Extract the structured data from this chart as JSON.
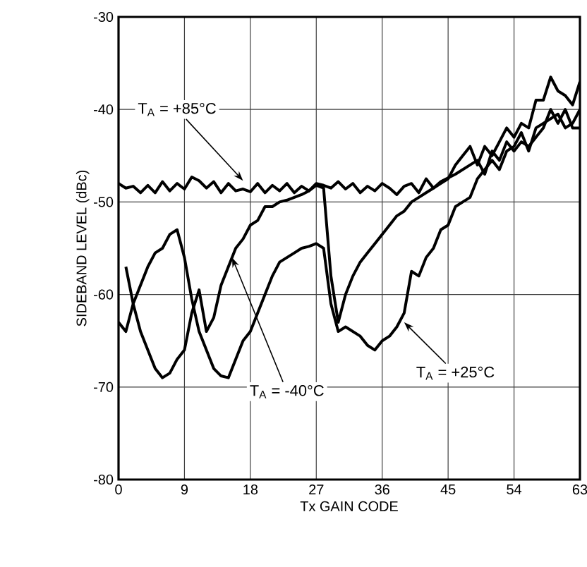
{
  "chart_data": {
    "type": "line",
    "xlabel": "Tx GAIN CODE",
    "ylabel": "SIDEBAND LEVEL (dBc)",
    "xlim": [
      0,
      63
    ],
    "xticks": [
      0,
      9,
      18,
      27,
      36,
      45,
      54,
      63
    ],
    "ylim": [
      -80,
      -30
    ],
    "yticks": [
      -80,
      -70,
      -60,
      -50,
      -40,
      -30
    ],
    "grid": true,
    "line_style": "solid",
    "series": [
      {
        "color": "#000000",
        "x": [
          0,
          1,
          2,
          3,
          4,
          5,
          6,
          7,
          8,
          9,
          10,
          11,
          12,
          13,
          14,
          15,
          16,
          17,
          18,
          19,
          20,
          21,
          22,
          23,
          24,
          25,
          26,
          27,
          28,
          29,
          30,
          31,
          32,
          33,
          34,
          35,
          36,
          37,
          38,
          39,
          40,
          41,
          42,
          43,
          44,
          46,
          48,
          49,
          50,
          51,
          52,
          53,
          54,
          55,
          56,
          57,
          58,
          59,
          60,
          61,
          62,
          63
        ],
        "values": [
          -48,
          -48.5,
          -48.3,
          -49,
          -48.2,
          -49,
          -47.8,
          -48.8,
          -48,
          -48.6,
          -47.3,
          -47.7,
          -48.5,
          -47.8,
          -49,
          -48,
          -48.8,
          -48.6,
          -48.9,
          -48,
          -49,
          -48.2,
          -48.8,
          -48,
          -49,
          -48.3,
          -48.8,
          -48,
          -48.2,
          -48.5,
          -47.8,
          -48.6,
          -48,
          -49,
          -48.3,
          -48.8,
          -48,
          -48.5,
          -49.2,
          -48.3,
          -48,
          -49,
          -47.5,
          -48.5,
          -47.8,
          -47,
          -46,
          -45.5,
          -47,
          -44.5,
          -45.5,
          -43.5,
          -44.5,
          -43.5,
          -44,
          -43,
          -42,
          -40,
          -41.5,
          -40,
          -42,
          -42
        ]
      },
      {
        "color": "#000000",
        "x": [
          1,
          2,
          3,
          4,
          5,
          6,
          7,
          8,
          9,
          10,
          11,
          12,
          13,
          14,
          15,
          16,
          17,
          18,
          19,
          20,
          21,
          22,
          23,
          24,
          25,
          26,
          27,
          28,
          29,
          30,
          31,
          32,
          33,
          34,
          35,
          36,
          37,
          38,
          39,
          40,
          41,
          42,
          43,
          44,
          45,
          46,
          47,
          48,
          49,
          50,
          51,
          52,
          53,
          54,
          55,
          56,
          57,
          58,
          59,
          60,
          61,
          62,
          63
        ],
        "values": [
          -57,
          -61,
          -64,
          -66,
          -68,
          -69,
          -68.5,
          -67,
          -66,
          -62,
          -59.5,
          -64,
          -62.5,
          -59,
          -57,
          -55,
          -54,
          -52.5,
          -52,
          -50.5,
          -50.5,
          -50,
          -49.8,
          -49.5,
          -49.2,
          -48.8,
          -48.2,
          -48.5,
          -58,
          -63,
          -60,
          -58,
          -56.5,
          -55.5,
          -54.5,
          -53.5,
          -52.5,
          -51.5,
          -51,
          -50,
          -49.5,
          -49,
          -48.5,
          -48,
          -47.5,
          -46,
          -45,
          -44,
          -46,
          -44,
          -45,
          -43.5,
          -42,
          -43,
          -41.5,
          -42,
          -39,
          -39,
          -36.5,
          -38,
          -38.5,
          -39.5,
          -37
        ]
      },
      {
        "color": "#000000",
        "x": [
          0,
          1,
          2,
          3,
          4,
          5,
          6,
          7,
          8,
          9,
          10,
          11,
          12,
          13,
          14,
          15,
          16,
          17,
          18,
          19,
          20,
          21,
          22,
          23,
          24,
          25,
          26,
          27,
          28,
          29,
          30,
          31,
          32,
          33,
          34,
          35,
          36,
          37,
          38,
          39,
          40,
          41,
          42,
          43,
          44,
          45,
          46,
          47,
          48,
          49,
          50,
          51,
          52,
          53,
          54,
          55,
          56,
          57,
          58,
          59,
          60,
          61,
          62,
          63
        ],
        "values": [
          -63,
          -64,
          -61,
          -59,
          -57,
          -55.5,
          -55,
          -53.5,
          -53,
          -56,
          -60.5,
          -64,
          -66,
          -68,
          -68.8,
          -69,
          -67,
          -65,
          -64,
          -62,
          -60,
          -58,
          -56.5,
          -56,
          -55.5,
          -55,
          -54.8,
          -54.5,
          -55,
          -61,
          -64,
          -63.5,
          -64,
          -64.5,
          -65.5,
          -66,
          -65,
          -64.5,
          -63.5,
          -62,
          -57.5,
          -58,
          -56,
          -55,
          -53,
          -52.5,
          -50.5,
          -50,
          -49.5,
          -47.5,
          -46.5,
          -45.5,
          -46.5,
          -44.5,
          -44,
          -42.5,
          -44.5,
          -42,
          -41.5,
          -41,
          -40.5,
          -42,
          -41.5,
          -40
        ]
      }
    ],
    "annotations": [
      {
        "text": "T$_{A}$ = +85°C",
        "x": 17,
        "y": -47.7
      },
      {
        "text": "T$_{A}$ = -40°C",
        "x": 15.5,
        "y": -56
      },
      {
        "text": "T$_{A}$ = +25°C",
        "x": 39,
        "y": -63
      }
    ]
  }
}
